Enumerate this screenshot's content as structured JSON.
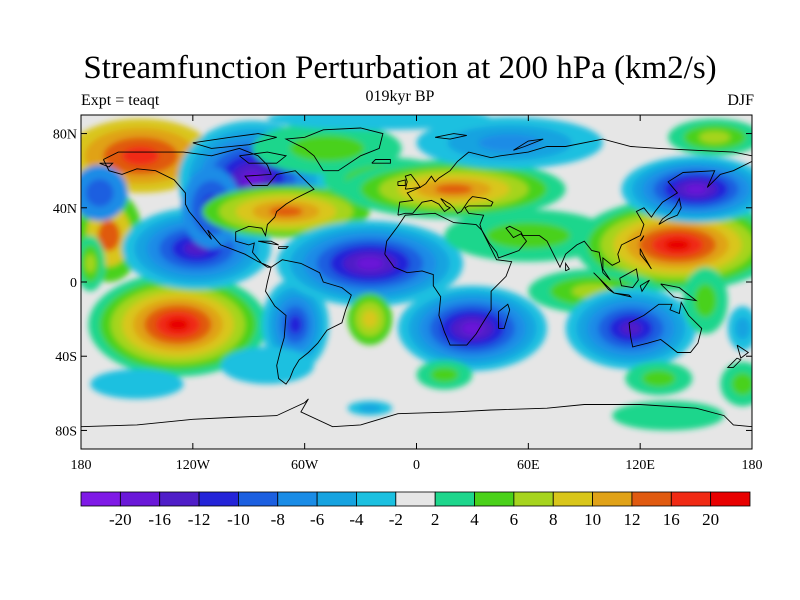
{
  "title": "Streamfunction Perturbation at 200 hPa (km2/s)",
  "experiment_label": "Expt = teaqt",
  "time_label": "019kyr BP",
  "season_label": "DJF",
  "lat_ticks": [
    "80N",
    "40N",
    "0",
    "40S",
    "80S"
  ],
  "lon_ticks": [
    "180",
    "120W",
    "60W",
    "0",
    "60E",
    "120E",
    "180"
  ],
  "colorbar": {
    "labels": [
      "-20",
      "-16",
      "-12",
      "-10",
      "-8",
      "-6",
      "-4",
      "-2",
      "2",
      "4",
      "6",
      "8",
      "10",
      "12",
      "16",
      "20"
    ],
    "colors": [
      "#7f1ae6",
      "#6a18d8",
      "#4f1ec8",
      "#2424d8",
      "#1b5fe0",
      "#1a8ce6",
      "#16a3e0",
      "#1bc0e0",
      "#e6e6e6",
      "#1ed68c",
      "#4ad11a",
      "#a6d41e",
      "#d9c61a",
      "#e0a218",
      "#e05a10",
      "#f02a14",
      "#e80000"
    ]
  }
}
